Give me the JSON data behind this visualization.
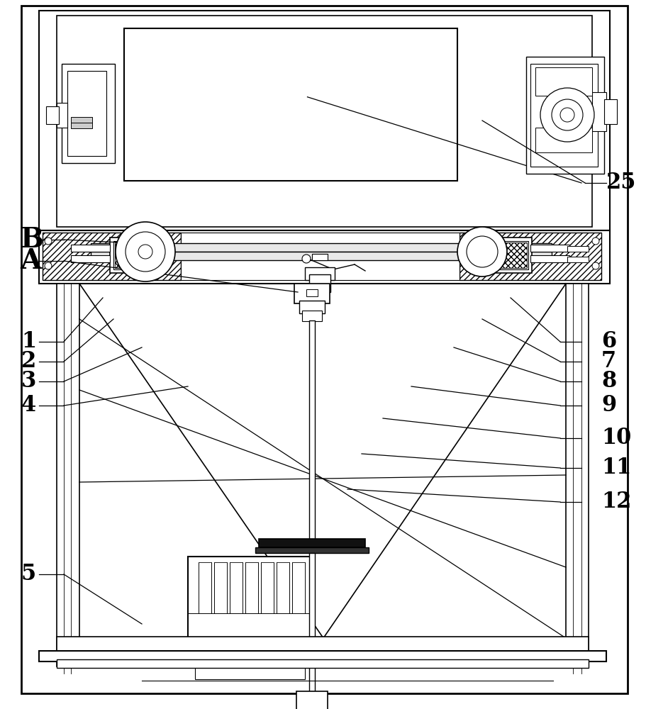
{
  "bg_color": "#ffffff",
  "lc": "#000000",
  "fig_w": 9.12,
  "fig_h": 10.0,
  "dpi": 100
}
